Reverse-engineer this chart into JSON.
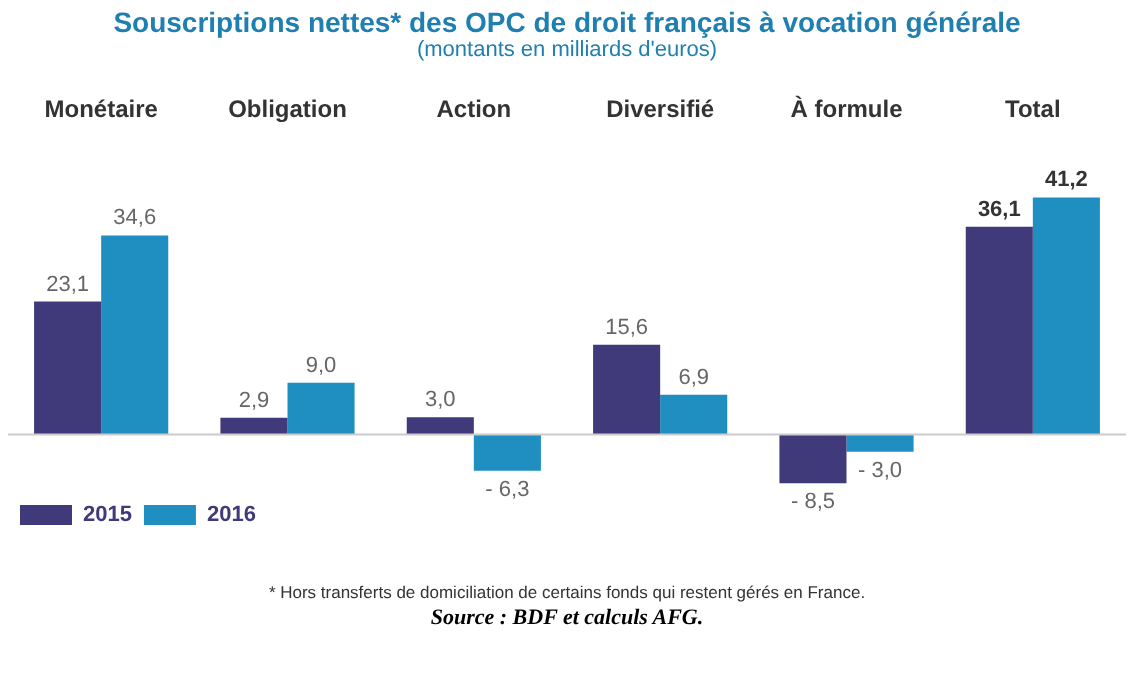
{
  "chart_data": {
    "type": "bar",
    "title": "Souscriptions nettes* des OPC de droit français à vocation générale",
    "subtitle": "(montants en milliards d'euros)",
    "categories": [
      "Monétaire",
      "Obligation",
      "Action",
      "Diversifié",
      "À formule",
      "Total"
    ],
    "series": [
      {
        "name": "2015",
        "color": "#403a7a",
        "values": [
          23.1,
          2.9,
          3.0,
          15.6,
          -8.5,
          36.1
        ],
        "value_labels": [
          "23,1",
          "2,9",
          "3,0",
          "15,6",
          "- 8,5",
          "36,1"
        ]
      },
      {
        "name": "2016",
        "color": "#1e8fc0",
        "values": [
          34.6,
          9.0,
          -6.3,
          6.9,
          -3.0,
          41.2
        ],
        "value_labels": [
          "34,6",
          "9,0",
          "- 6,3",
          "6,9",
          "- 3,0",
          "41,2"
        ]
      }
    ],
    "tick_labels": "x",
    "grid": false,
    "legend": "bottom left",
    "annotations": [
      "* Hors transferts de domiciliation de certains fonds qui restent gérés en France.",
      "Source : BDF et calculs AFG."
    ]
  }
}
